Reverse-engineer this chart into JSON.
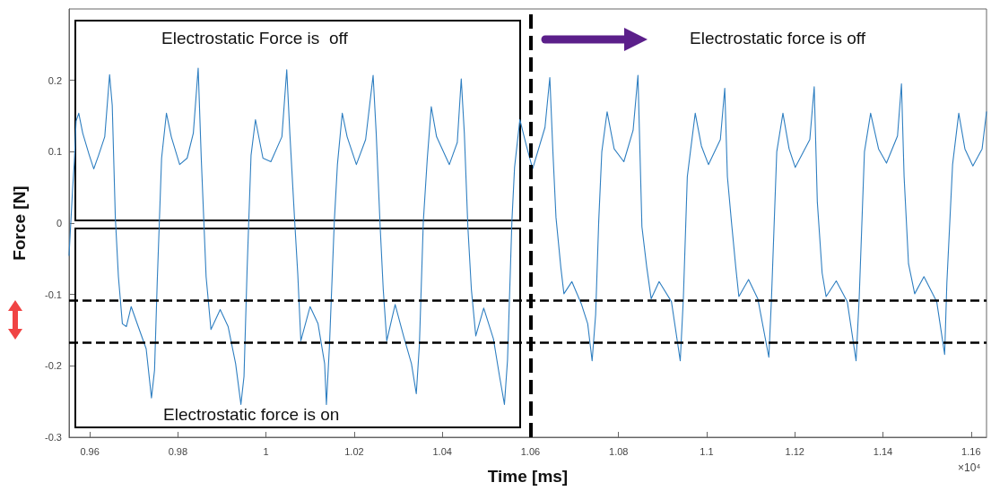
{
  "chart_data": {
    "type": "line",
    "xlabel": "Time [ms]",
    "ylabel": "Force [N]",
    "annotations": [
      "Electrostatic Force is  off",
      "Electrostatic force is off",
      "Electrostatic force is on",
      "×10⁴"
    ],
    "xlim": [
      0.9553,
      1.1635
    ],
    "xticks": [
      0.96,
      0.98,
      1,
      1.02,
      1.04,
      1.06,
      1.08,
      1.1,
      1.12,
      1.14,
      1.16
    ],
    "ylim": [
      -0.3,
      0.3
    ],
    "yticks": [
      -0.3,
      -0.2,
      -0.1,
      0,
      0.1,
      0.2
    ],
    "grid": false,
    "marker": "none",
    "line_style": "solid",
    "ref_lines": [
      {
        "axis": "y",
        "value": -0.108,
        "color": "#000000",
        "line_style": "dashed"
      },
      {
        "axis": "y",
        "value": -0.167,
        "color": "#000000",
        "line_style": "dashed"
      },
      {
        "axis": "x",
        "value": 1.06,
        "color": "#000000",
        "line_style": "dashed"
      }
    ],
    "series": [
      {
        "color": "#2f7fc1",
        "x": [
          0.9553,
          0.9561,
          0.9565,
          0.9569,
          0.9575,
          0.9584,
          0.9599,
          0.9609,
          0.962,
          0.9634,
          0.9645,
          0.9651,
          0.9658,
          0.9665,
          0.9674,
          0.9683,
          0.9694,
          0.971,
          0.9728,
          0.974,
          0.9747,
          0.9753,
          0.9763,
          0.9774,
          0.9785,
          0.9804,
          0.9821,
          0.9835,
          0.9846,
          0.9853,
          0.9864,
          0.9875,
          0.9896,
          0.9914,
          0.9931,
          0.9943,
          0.995,
          0.9957,
          0.9966,
          0.9976,
          0.9993,
          1.0011,
          1.0036,
          1.0047,
          1.0054,
          1.0065,
          1.0072,
          1.0079,
          1.01,
          1.0118,
          1.0133,
          1.0137,
          1.0144,
          1.0155,
          1.0162,
          1.0173,
          1.0184,
          1.0205,
          1.0226,
          1.0243,
          1.025,
          1.0259,
          1.0266,
          1.0274,
          1.0293,
          1.0312,
          1.033,
          1.0341,
          1.0348,
          1.0357,
          1.0366,
          1.0375,
          1.0387,
          1.0416,
          1.0434,
          1.0443,
          1.045,
          1.0458,
          1.0466,
          1.0476,
          1.0494,
          1.0516,
          1.053,
          1.0541,
          1.0548,
          1.0558,
          1.0564,
          1.0576,
          1.0591,
          1.0605,
          1.0633,
          1.0644,
          1.0651,
          1.0658,
          1.0669,
          1.0676,
          1.0694,
          1.0716,
          1.073,
          1.074,
          1.0748,
          1.0755,
          1.0762,
          1.0774,
          1.079,
          1.0812,
          1.0833,
          1.0844,
          1.0853,
          1.0864,
          1.0874,
          1.0892,
          1.092,
          1.094,
          1.0947,
          1.0956,
          1.0963,
          1.0974,
          1.0988,
          1.1004,
          1.1031,
          1.1041,
          1.1047,
          1.1056,
          1.1066,
          1.1073,
          1.1095,
          1.1116,
          1.1141,
          1.1147,
          1.1159,
          1.1173,
          1.1187,
          1.1201,
          1.1234,
          1.1244,
          1.1251,
          1.1262,
          1.1271,
          1.1294,
          1.1319,
          1.1339,
          1.1346,
          1.1358,
          1.1372,
          1.139,
          1.1408,
          1.1433,
          1.1442,
          1.1448,
          1.1458,
          1.1472,
          1.1493,
          1.1522,
          1.154,
          1.1545,
          1.1558,
          1.1572,
          1.1586,
          1.1604,
          1.1625,
          1.1635
        ],
        "values": [
          -0.045,
          0.047,
          0.086,
          0.143,
          0.154,
          0.126,
          0.095,
          0.076,
          0.095,
          0.121,
          0.208,
          0.165,
          0.008,
          -0.075,
          -0.141,
          -0.145,
          -0.117,
          -0.145,
          -0.176,
          -0.245,
          -0.206,
          -0.084,
          0.091,
          0.154,
          0.121,
          0.082,
          0.091,
          0.126,
          0.217,
          0.091,
          -0.075,
          -0.149,
          -0.121,
          -0.145,
          -0.197,
          -0.254,
          -0.215,
          -0.066,
          0.095,
          0.145,
          0.091,
          0.086,
          0.121,
          0.215,
          0.126,
          0.003,
          -0.071,
          -0.165,
          -0.117,
          -0.141,
          -0.197,
          -0.254,
          -0.171,
          0.003,
          0.082,
          0.154,
          0.121,
          0.082,
          0.117,
          0.207,
          0.126,
          -0.005,
          -0.093,
          -0.165,
          -0.114,
          -0.158,
          -0.197,
          -0.239,
          -0.171,
          0.003,
          0.091,
          0.163,
          0.121,
          0.082,
          0.113,
          0.202,
          0.126,
          -0.005,
          -0.093,
          -0.158,
          -0.119,
          -0.162,
          -0.215,
          -0.254,
          -0.192,
          0.003,
          0.078,
          0.145,
          0.108,
          0.076,
          0.134,
          0.204,
          0.1,
          0.008,
          -0.062,
          -0.099,
          -0.082,
          -0.114,
          -0.141,
          -0.193,
          -0.128,
          0.003,
          0.1,
          0.156,
          0.104,
          0.086,
          0.13,
          0.207,
          -0.005,
          -0.062,
          -0.106,
          -0.082,
          -0.11,
          -0.193,
          -0.106,
          0.065,
          0.1,
          0.154,
          0.108,
          0.082,
          0.117,
          0.189,
          0.065,
          0.003,
          -0.062,
          -0.103,
          -0.079,
          -0.106,
          -0.188,
          -0.106,
          0.1,
          0.154,
          0.104,
          0.078,
          0.117,
          0.191,
          0.03,
          -0.07,
          -0.103,
          -0.081,
          -0.11,
          -0.193,
          -0.106,
          0.1,
          0.154,
          0.104,
          0.084,
          0.122,
          0.195,
          0.065,
          -0.057,
          -0.099,
          -0.075,
          -0.11,
          -0.184,
          -0.084,
          0.082,
          0.154,
          0.104,
          0.08,
          0.104,
          0.156
        ]
      }
    ]
  }
}
